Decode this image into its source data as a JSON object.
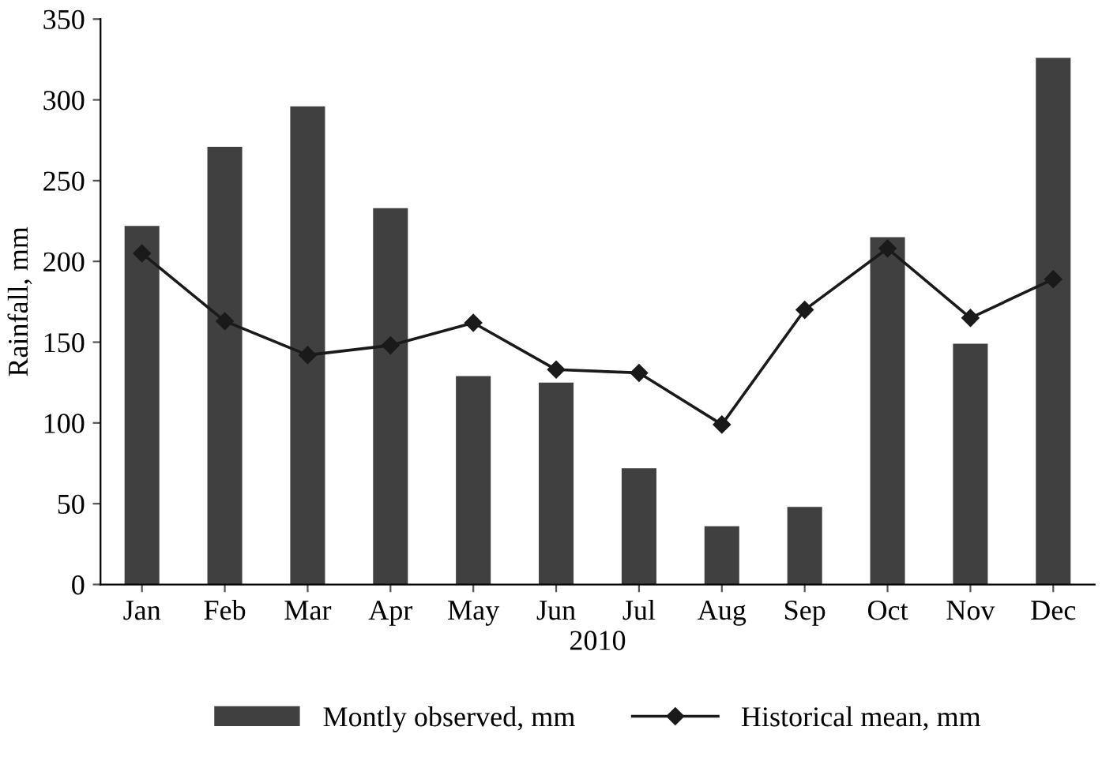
{
  "chart_data": {
    "type": "bar",
    "xlabel": "2010",
    "ylabel": "Rainfall, mm",
    "categories": [
      "Jan",
      "Feb",
      "Mar",
      "Apr",
      "May",
      "Jun",
      "Jul",
      "Aug",
      "Sep",
      "Oct",
      "Nov",
      "Dec"
    ],
    "series": [
      {
        "name": "Montly observed, mm",
        "color": "#404040",
        "values": [
          222,
          271,
          296,
          233,
          129,
          125,
          72,
          36,
          48,
          215,
          149,
          326
        ]
      },
      {
        "name": "Historical mean, mm",
        "type": "line",
        "color": "#1a1a1a",
        "marker": "diamond",
        "values": [
          205,
          163,
          142,
          148,
          162,
          133,
          131,
          99,
          170,
          208,
          165,
          189
        ]
      }
    ],
    "ylim": [
      0,
      350
    ],
    "yticks": [
      0,
      50,
      100,
      150,
      200,
      250,
      300,
      350
    ],
    "grid": false,
    "legend": "bottom"
  }
}
